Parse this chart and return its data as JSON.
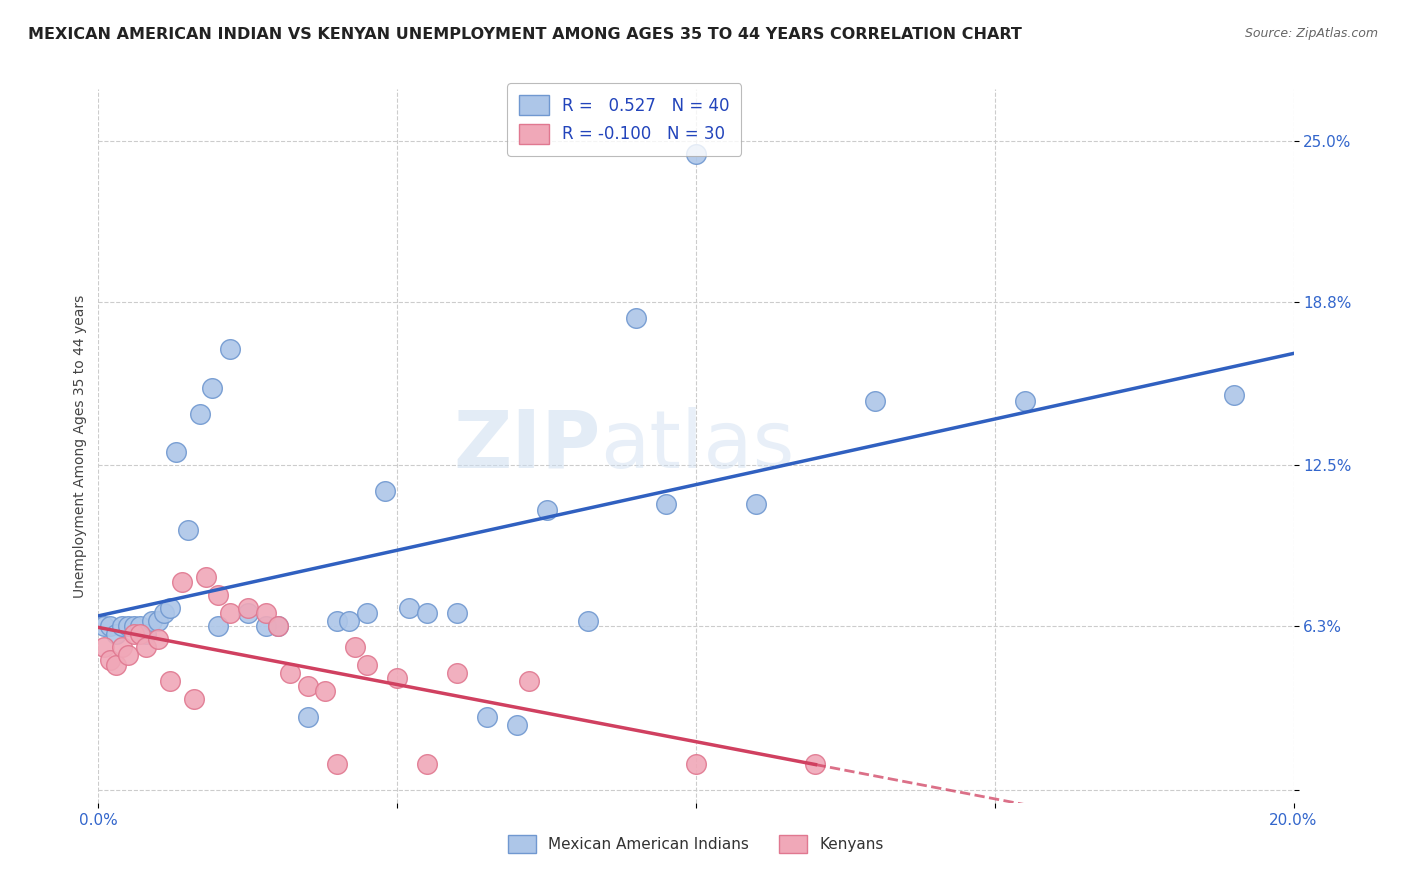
{
  "title": "MEXICAN AMERICAN INDIAN VS KENYAN UNEMPLOYMENT AMONG AGES 35 TO 44 YEARS CORRELATION CHART",
  "source": "Source: ZipAtlas.com",
  "ylabel": "Unemployment Among Ages 35 to 44 years",
  "xlim": [
    0.0,
    0.2
  ],
  "ylim": [
    -0.005,
    0.27
  ],
  "xticks": [
    0.0,
    0.05,
    0.1,
    0.15,
    0.2
  ],
  "xticklabels": [
    "0.0%",
    "",
    "",
    "",
    "20.0%"
  ],
  "ytick_positions": [
    0.0,
    0.063,
    0.125,
    0.188,
    0.25
  ],
  "ytick_labels": [
    "",
    "6.3%",
    "12.5%",
    "18.8%",
    "25.0%"
  ],
  "watermark_zip": "ZIP",
  "watermark_atlas": "atlas",
  "blue_R": "0.527",
  "blue_N": "40",
  "pink_R": "-0.100",
  "pink_N": "30",
  "blue_scatter_x": [
    0.001,
    0.002,
    0.003,
    0.004,
    0.005,
    0.006,
    0.007,
    0.008,
    0.009,
    0.01,
    0.011,
    0.012,
    0.013,
    0.015,
    0.017,
    0.019,
    0.02,
    0.022,
    0.025,
    0.028,
    0.03,
    0.035,
    0.04,
    0.042,
    0.045,
    0.048,
    0.052,
    0.055,
    0.06,
    0.065,
    0.07,
    0.075,
    0.082,
    0.09,
    0.095,
    0.1,
    0.11,
    0.13,
    0.155,
    0.19
  ],
  "blue_scatter_y": [
    0.063,
    0.063,
    0.06,
    0.063,
    0.063,
    0.063,
    0.063,
    0.06,
    0.065,
    0.065,
    0.068,
    0.07,
    0.13,
    0.1,
    0.145,
    0.155,
    0.063,
    0.17,
    0.068,
    0.063,
    0.063,
    0.028,
    0.065,
    0.065,
    0.068,
    0.115,
    0.07,
    0.068,
    0.068,
    0.028,
    0.025,
    0.108,
    0.065,
    0.182,
    0.11,
    0.245,
    0.11,
    0.15,
    0.15,
    0.152
  ],
  "pink_scatter_x": [
    0.001,
    0.002,
    0.003,
    0.004,
    0.005,
    0.006,
    0.007,
    0.008,
    0.01,
    0.012,
    0.014,
    0.016,
    0.018,
    0.02,
    0.022,
    0.025,
    0.028,
    0.03,
    0.032,
    0.035,
    0.038,
    0.04,
    0.043,
    0.045,
    0.05,
    0.055,
    0.06,
    0.072,
    0.1,
    0.12
  ],
  "pink_scatter_y": [
    0.055,
    0.05,
    0.048,
    0.055,
    0.052,
    0.06,
    0.06,
    0.055,
    0.058,
    0.042,
    0.08,
    0.035,
    0.082,
    0.075,
    0.068,
    0.07,
    0.068,
    0.063,
    0.045,
    0.04,
    0.038,
    0.01,
    0.055,
    0.048,
    0.043,
    0.01,
    0.045,
    0.042,
    0.01,
    0.01
  ],
  "blue_line_color": "#3060c0",
  "pink_line_color": "#d04060",
  "blue_marker_facecolor": "#adc6e8",
  "blue_marker_edge": "#7098d0",
  "pink_marker_facecolor": "#f0a8b8",
  "pink_marker_edge": "#e07890",
  "bg_color": "#ffffff",
  "grid_color": "#cccccc",
  "title_fontsize": 11.5,
  "axis_label_fontsize": 10,
  "tick_fontsize": 11,
  "legend_fontsize": 12
}
